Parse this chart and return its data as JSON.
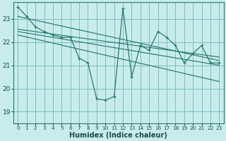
{
  "xlabel": "Humidex (Indice chaleur)",
  "bg_color": "#c8ecec",
  "grid_color": "#7dbdbd",
  "line_color": "#2a7a6e",
  "xlim": [
    -0.5,
    23.5
  ],
  "ylim": [
    18.5,
    23.7
  ],
  "yticks": [
    19,
    20,
    21,
    22,
    23
  ],
  "xticks": [
    0,
    1,
    2,
    3,
    4,
    5,
    6,
    7,
    8,
    9,
    10,
    11,
    12,
    13,
    14,
    15,
    16,
    17,
    18,
    19,
    20,
    21,
    22,
    23
  ],
  "main_y": [
    23.5,
    23.1,
    22.65,
    22.45,
    22.3,
    22.2,
    22.2,
    21.3,
    21.1,
    19.55,
    19.5,
    19.65,
    23.45,
    20.5,
    21.85,
    21.65,
    22.45,
    22.2,
    21.85,
    21.1,
    21.5,
    21.85,
    21.1,
    21.1
  ],
  "trend1": [
    23.1,
    21.2
  ],
  "trend2": [
    22.55,
    21.35
  ],
  "trend3": [
    22.45,
    21.0
  ],
  "trend4": [
    22.3,
    20.3
  ]
}
